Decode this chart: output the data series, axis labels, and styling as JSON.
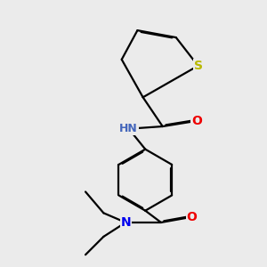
{
  "background_color": "#ebebeb",
  "atom_colors": {
    "S": "#b8b800",
    "N_amide": "#4466bb",
    "N_diethyl": "#0000ee",
    "O": "#ee0000",
    "C": "#000000"
  },
  "bond_color": "#000000",
  "bond_width": 1.6,
  "font_size_atoms": 10
}
